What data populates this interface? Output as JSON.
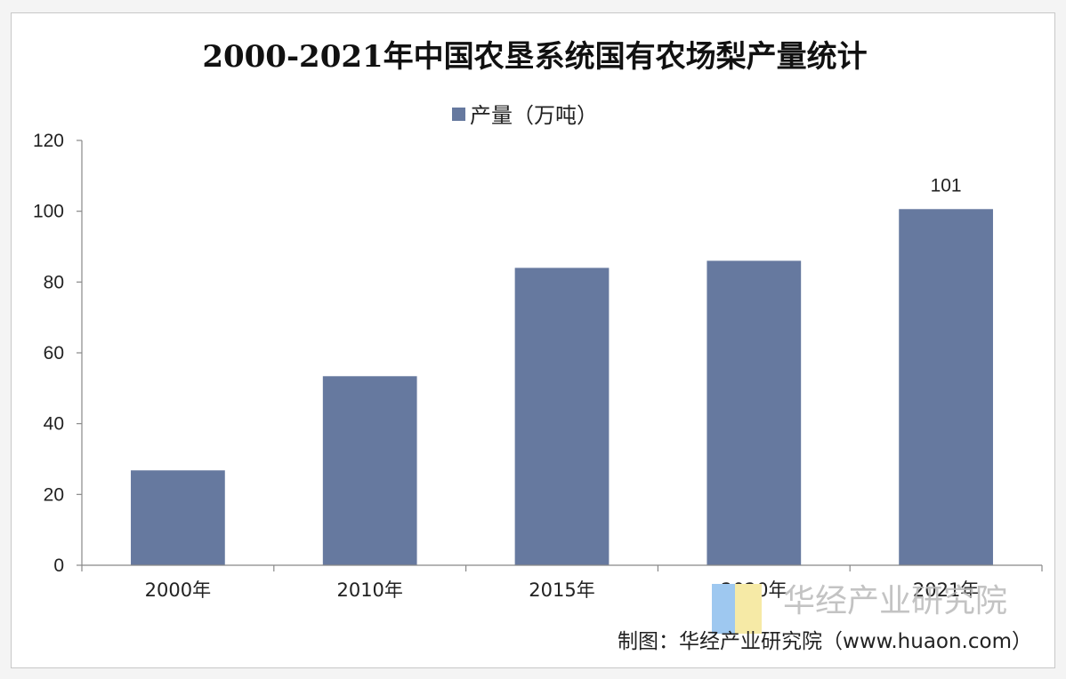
{
  "chart_data": {
    "type": "bar",
    "title": "2000-2021年中国农垦系统国有农场梨产量统计",
    "categories": [
      "2000年",
      "2010年",
      "2015年",
      "2020年",
      "2021年"
    ],
    "series": [
      {
        "name": "产量（万吨）",
        "values": [
          26.8,
          53.4,
          84.0,
          86.0,
          100.6
        ]
      }
    ],
    "data_labels": [
      "",
      "",
      "",
      "",
      "101"
    ],
    "ylim": [
      0,
      120
    ],
    "yticks": [
      0,
      20,
      40,
      60,
      80,
      100,
      120
    ],
    "xlabel": "",
    "ylabel": "",
    "grid": false,
    "legend_position": "top-center",
    "colors": {
      "bar": "#66799F",
      "axis": "#888888"
    }
  },
  "watermark": {
    "text": "华经产业研究院",
    "colors": {
      "blue": "#9ec8f0",
      "yellow": "#f6eaa6"
    }
  },
  "source": {
    "text": "制图：华经产业研究院（www.huaon.com）"
  }
}
